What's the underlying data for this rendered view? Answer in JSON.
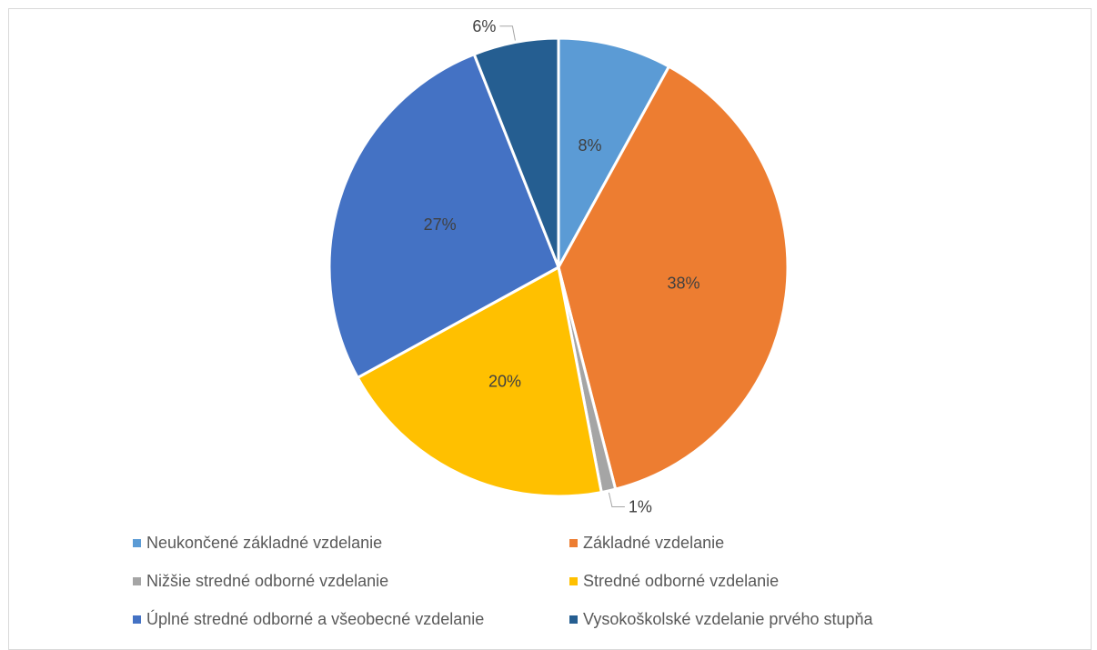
{
  "chart_data": {
    "type": "pie",
    "title": "",
    "slices": [
      {
        "label": "Neukončené základné vzdelanie",
        "value": 8,
        "value_label": "8%",
        "color": "#5B9BD5",
        "label_placement": "inside"
      },
      {
        "label": "Základné vzdelanie",
        "value": 38,
        "value_label": "38%",
        "color": "#ED7D31",
        "label_placement": "inside"
      },
      {
        "label": "Nižšie stredné odborné vzdelanie",
        "value": 1,
        "value_label": "1%",
        "color": "#A5A5A5",
        "label_placement": "outside-leader"
      },
      {
        "label": "Stredné odborné vzdelanie",
        "value": 20,
        "value_label": "20%",
        "color": "#FFC000",
        "label_placement": "inside"
      },
      {
        "label": "Úplné stredné odborné a všeobecné vzdelanie",
        "value": 27,
        "value_label": "27%",
        "color": "#4472C4",
        "label_placement": "inside"
      },
      {
        "label": "Vysokoškolské vzdelanie prvého stupňa",
        "value": 6,
        "value_label": "6%",
        "color": "#255E91",
        "label_placement": "outside-leader"
      }
    ],
    "legend_placement": "bottom",
    "slice_border_color": "#FFFFFF"
  }
}
